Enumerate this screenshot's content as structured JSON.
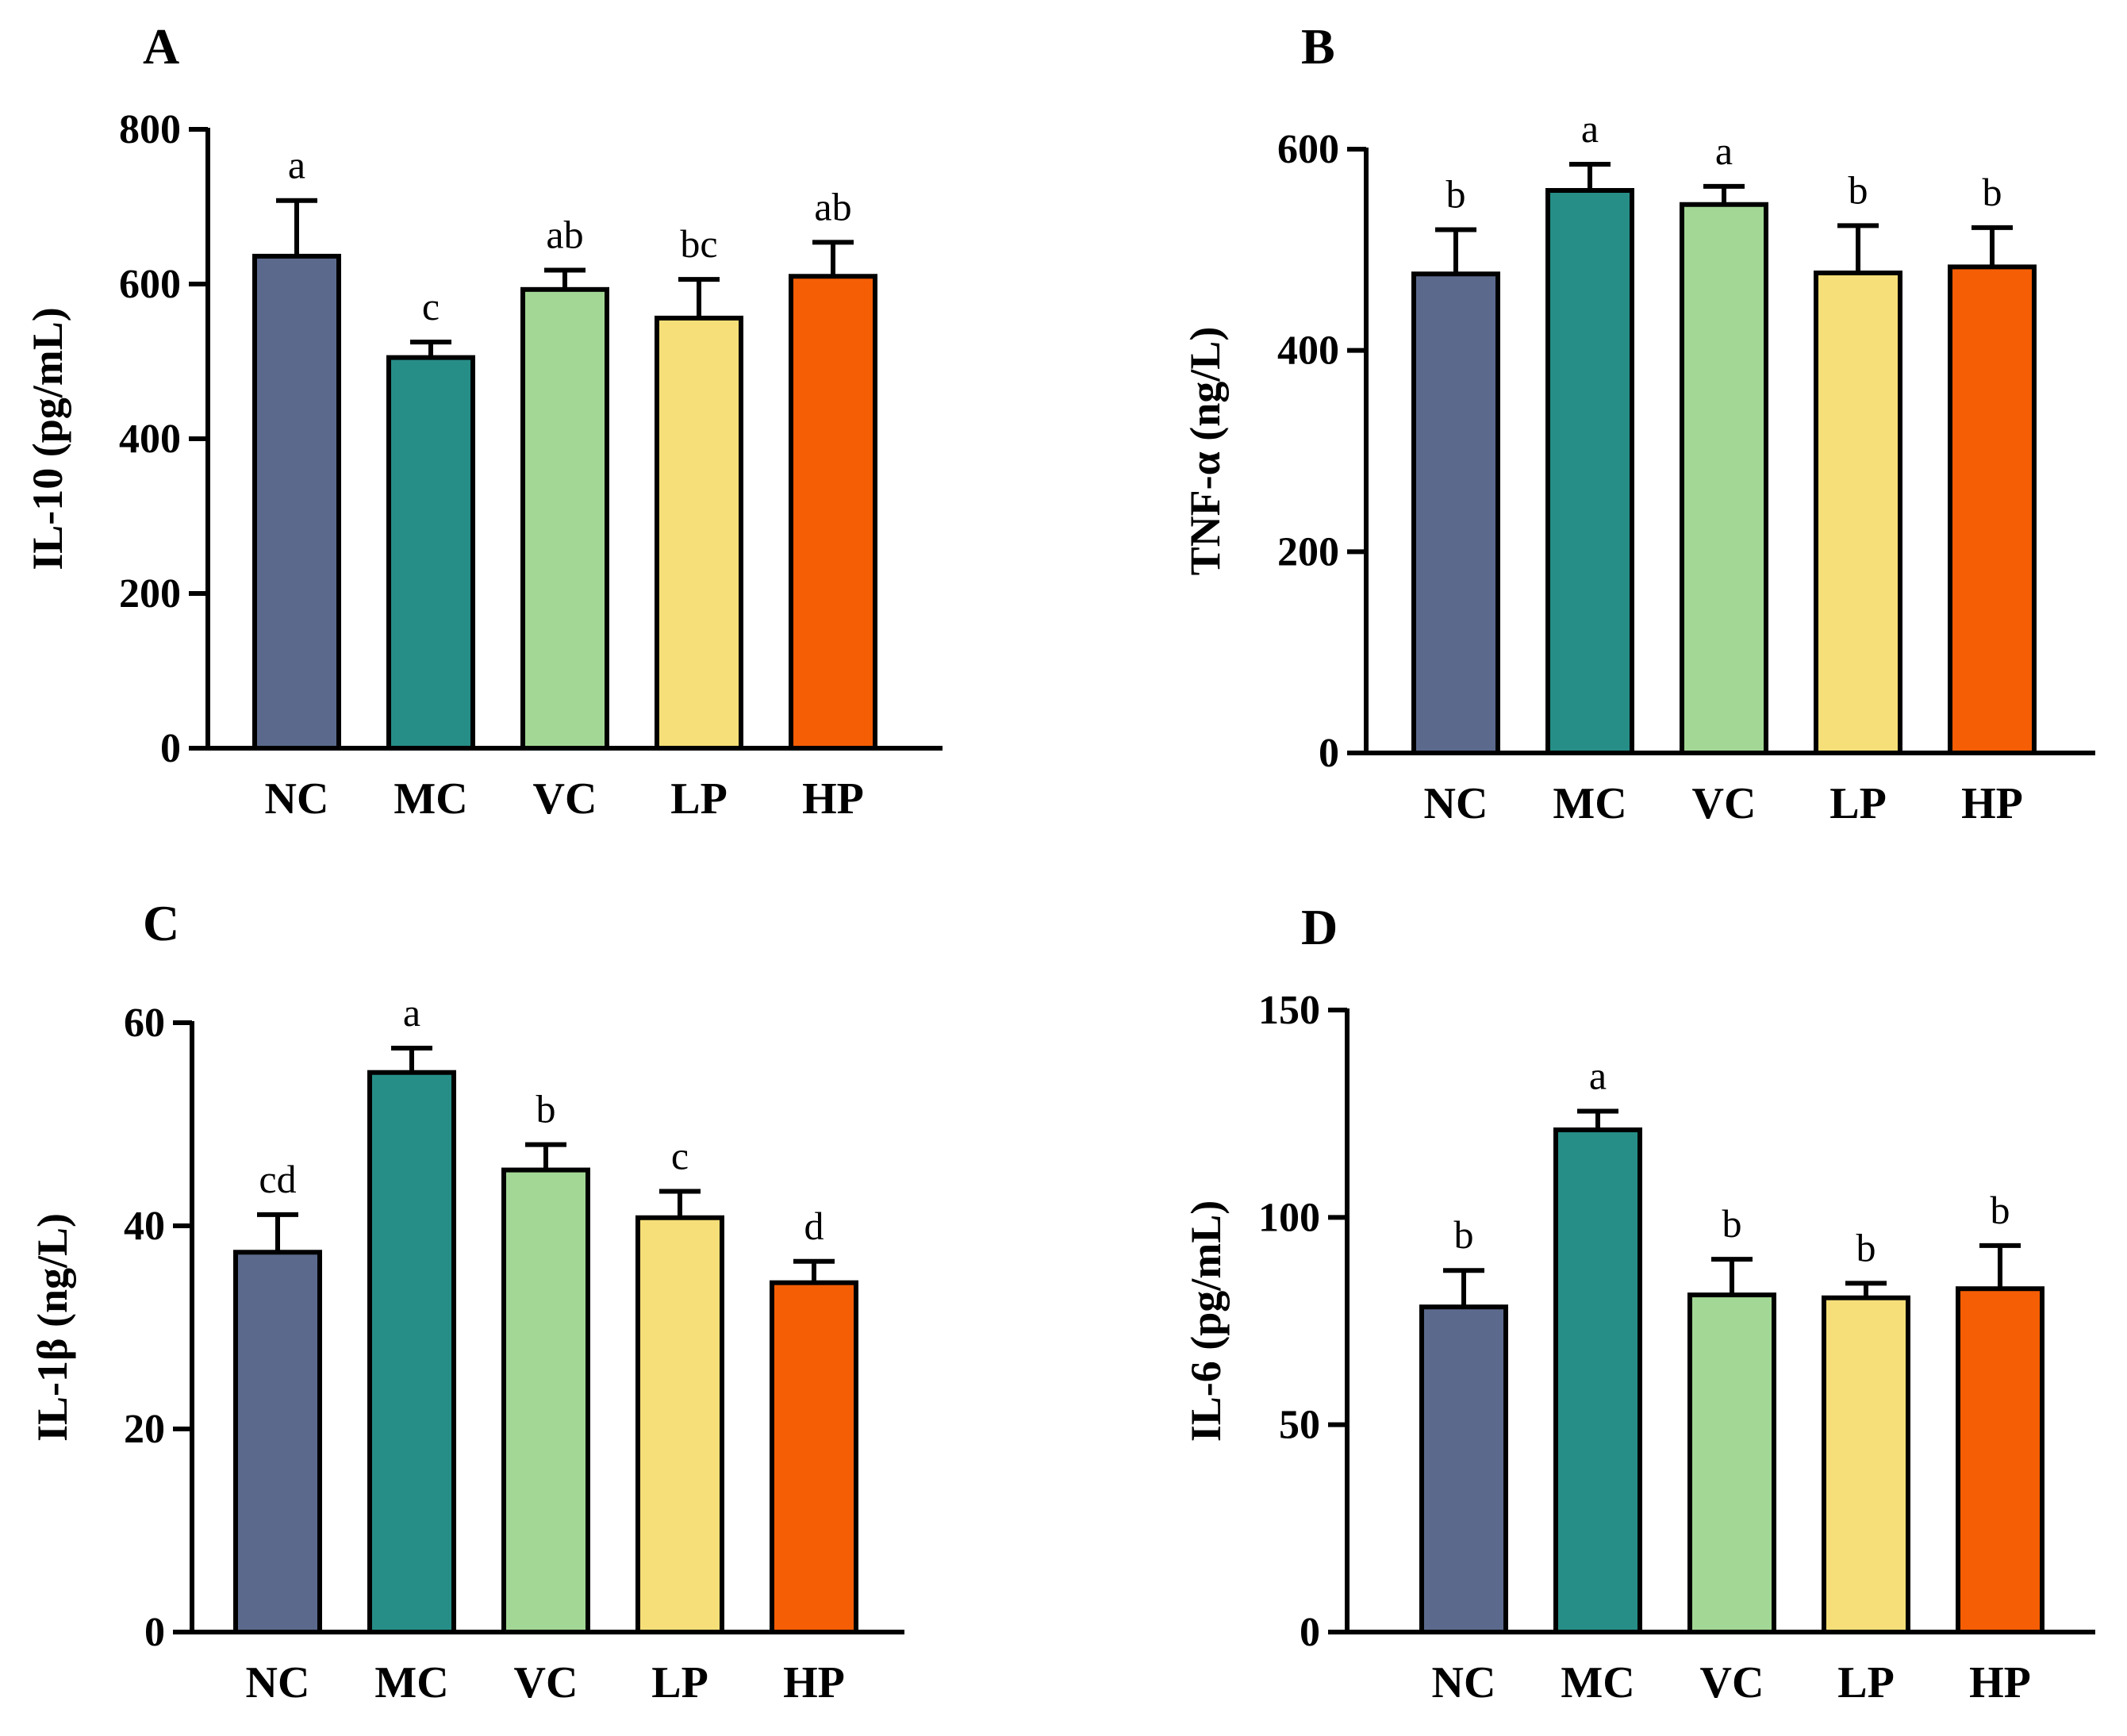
{
  "chart_data": [
    {
      "type": "bar",
      "panel": "A",
      "title": "",
      "xlabel": "",
      "ylabel": "IL-10 (pg/mL)",
      "ylim": [
        0,
        800
      ],
      "yticks": [
        0,
        200,
        400,
        600,
        800
      ],
      "categories": [
        "NC",
        "MC",
        "VC",
        "LP",
        "HP"
      ],
      "values": [
        636,
        505,
        593,
        556,
        610
      ],
      "errors": [
        72,
        20,
        25,
        50,
        44
      ],
      "significance": [
        "a",
        "c",
        "ab",
        "bc",
        "ab"
      ],
      "colors": [
        "#5b6a8c",
        "#268e87",
        "#a3d795",
        "#f6df78",
        "#f65e05"
      ]
    },
    {
      "type": "bar",
      "panel": "B",
      "title": "",
      "xlabel": "",
      "ylabel": "TNF-α (ng/L)",
      "ylim": [
        0,
        600
      ],
      "yticks": [
        0,
        200,
        400,
        600
      ],
      "categories": [
        "NC",
        "MC",
        "VC",
        "LP",
        "HP"
      ],
      "values": [
        476,
        559,
        545,
        477,
        483
      ],
      "errors": [
        44,
        26,
        18,
        47,
        39
      ],
      "significance": [
        "b",
        "a",
        "a",
        "b",
        "b"
      ],
      "colors": [
        "#5b6a8c",
        "#268e87",
        "#a3d795",
        "#f6df78",
        "#f65e05"
      ]
    },
    {
      "type": "bar",
      "panel": "C",
      "title": "",
      "xlabel": "",
      "ylabel": "IL-1β (ng/L)",
      "ylim": [
        0,
        60
      ],
      "yticks": [
        0,
        20,
        40,
        60
      ],
      "categories": [
        "NC",
        "MC",
        "VC",
        "LP",
        "HP"
      ],
      "values": [
        37.4,
        55.1,
        45.5,
        40.8,
        34.4
      ],
      "errors": [
        3.7,
        2.4,
        2.5,
        2.6,
        2.1
      ],
      "significance": [
        "cd",
        "a",
        "b",
        "c",
        "d"
      ],
      "colors": [
        "#5b6a8c",
        "#268e87",
        "#a3d795",
        "#f6df78",
        "#f65e05"
      ]
    },
    {
      "type": "bar",
      "panel": "D",
      "title": "",
      "xlabel": "",
      "ylabel": "IL-6 (pg/mL)",
      "ylim": [
        0,
        150
      ],
      "yticks": [
        0,
        50,
        100,
        150
      ],
      "categories": [
        "NC",
        "MC",
        "VC",
        "LP",
        "HP"
      ],
      "values": [
        78.4,
        121.1,
        81.3,
        80.6,
        82.8
      ],
      "errors": [
        8.8,
        4.5,
        8.6,
        3.5,
        10.4
      ],
      "significance": [
        "b",
        "a",
        "b",
        "b",
        "b"
      ],
      "colors": [
        "#5b6a8c",
        "#268e87",
        "#a3d795",
        "#f6df78",
        "#f65e05"
      ]
    }
  ]
}
